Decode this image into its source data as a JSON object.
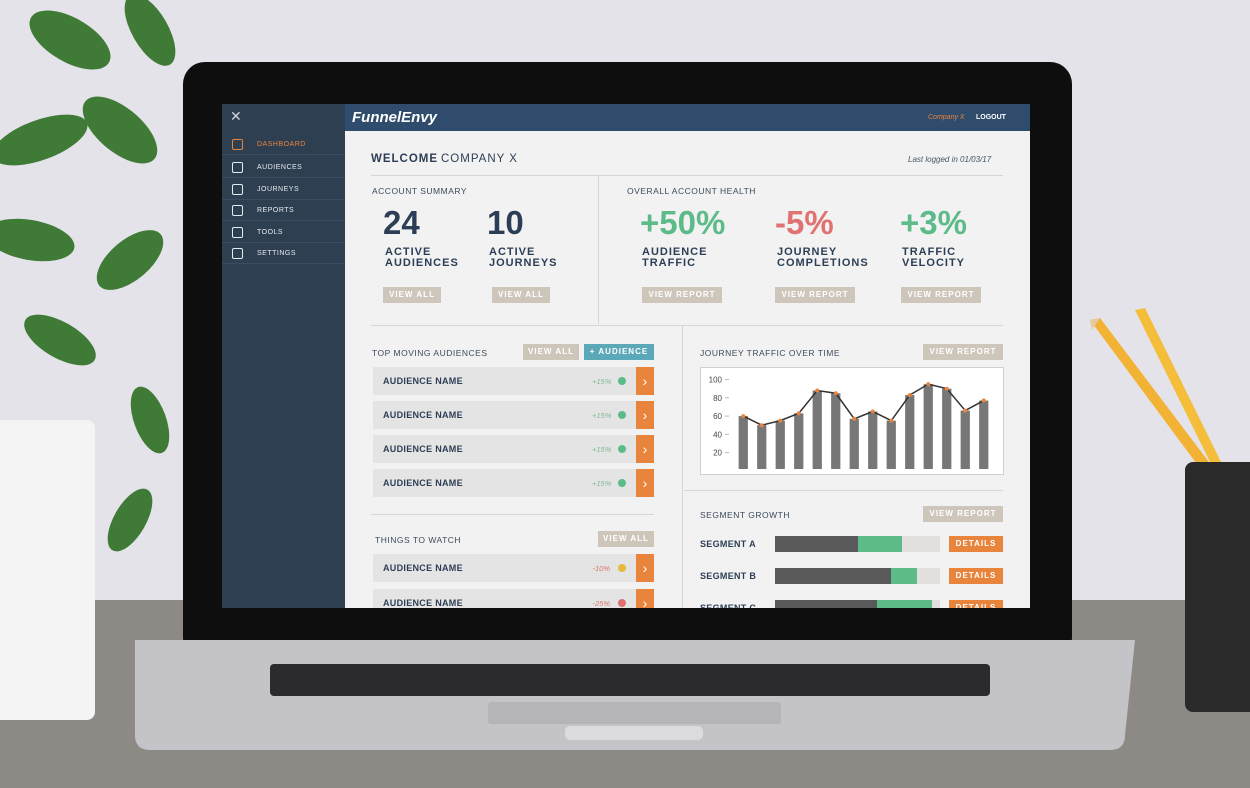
{
  "sidebar": {
    "items": [
      "DASHBOARD",
      "AUDIENCES",
      "JOURNEYS",
      "REPORTS",
      "TOOLS",
      "SETTINGS"
    ]
  },
  "header": {
    "brand": "FunnelEnvy",
    "company": "Company X",
    "logout": "LOGOUT"
  },
  "welcome": {
    "greeting": "WELCOME",
    "name": "COMPANY X",
    "last_logged": "Last logged in 01/03/17"
  },
  "account_summary": {
    "title": "ACCOUNT SUMMARY",
    "stats": [
      {
        "value": 24,
        "label": "ACTIVE AUDIENCES",
        "button": "VIEW ALL"
      },
      {
        "value": 10,
        "label": "ACTIVE JOURNEYS",
        "button": "VIEW ALL"
      }
    ]
  },
  "account_health": {
    "title": "OVERALL ACCOUNT HEALTH",
    "stats": [
      {
        "value": "+50%",
        "label": "AUDIENCE TRAFFIC",
        "button": "VIEW REPORT"
      },
      {
        "value": "-5%",
        "label": "JOURNEY COMPLETIONS",
        "button": "VIEW REPORT"
      },
      {
        "value": "+3%",
        "label": "TRAFFIC VELOCITY",
        "button": "VIEW REPORT"
      }
    ]
  },
  "top_moving": {
    "title": "TOP MOVING AUDIENCES",
    "buttons": [
      "VIEW ALL",
      "+ AUDIENCE"
    ],
    "rows": [
      {
        "name": "AUDIENCE NAME",
        "change": "+15%"
      },
      {
        "name": "AUDIENCE NAME",
        "change": "+15%"
      },
      {
        "name": "AUDIENCE NAME",
        "change": "+15%"
      },
      {
        "name": "AUDIENCE NAME",
        "change": "+15%"
      }
    ]
  },
  "things_to_watch": {
    "title": "THINGS TO WATCH",
    "button": "VIEW ALL",
    "rows": [
      {
        "name": "AUDIENCE NAME",
        "change": "-10%"
      },
      {
        "name": "AUDIENCE NAME",
        "change": "-25%"
      }
    ]
  },
  "chart_data": {
    "type": "bar",
    "title": "JOURNEY TRAFFIC OVER TIME",
    "button": "VIEW REPORT",
    "categories": [
      null,
      null,
      null,
      null,
      null,
      null,
      null,
      null,
      null,
      null,
      null,
      null,
      null,
      null
    ],
    "values": [
      60,
      50,
      55,
      63,
      88,
      85,
      57,
      65,
      55,
      83,
      95,
      90,
      66,
      77
    ],
    "color": "#777777",
    "line_color": "#333333",
    "marker_color": "#e8843c",
    "ylim": [
      2,
      105
    ],
    "yticks": [
      20,
      40,
      60,
      80,
      100
    ],
    "grid": false
  },
  "segment_growth": {
    "title": "SEGMENT GROWTH",
    "button": "VIEW REPORT",
    "segments": [
      {
        "name": "SEGMENT A",
        "base": 50,
        "growth": 27,
        "button": "DETAILS"
      },
      {
        "name": "SEGMENT B",
        "base": 70,
        "growth": 16,
        "button": "DETAILS"
      },
      {
        "name": "SEGMENT C",
        "base": 62,
        "growth": 33,
        "button": "DETAILS"
      }
    ]
  }
}
